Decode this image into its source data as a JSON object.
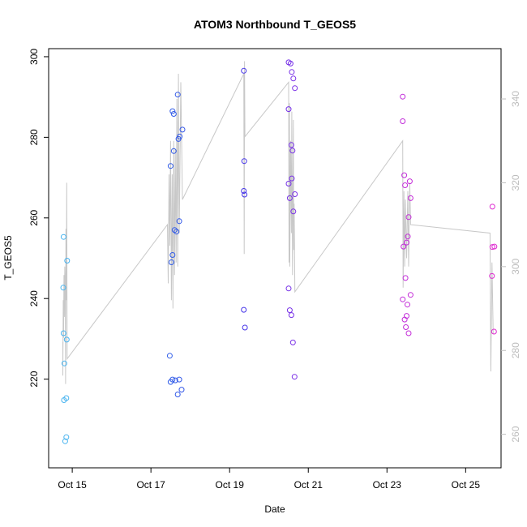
{
  "chart_data": {
    "type": "scatter",
    "title": "ATOM3 Northbound T_GEOS5",
    "xlabel": "Date",
    "ylabel": "T_GEOS5",
    "x_ticks": [
      "Oct 15",
      "Oct 17",
      "Oct 19",
      "Oct 21",
      "Oct 23",
      "Oct 25"
    ],
    "x_tick_values": [
      14,
      16,
      18,
      20,
      22,
      24
    ],
    "xlim": [
      13.4,
      24.9
    ],
    "ylim": [
      198,
      302
    ],
    "y_ticks": [
      220,
      240,
      260,
      280,
      300
    ],
    "y2lim": [
      252,
      352
    ],
    "y2_ticks": [
      260,
      280,
      300,
      320,
      340
    ],
    "grid": false,
    "legend": "none",
    "colors": {
      "line": "#c8c8c8",
      "point_gradient": [
        "#4ab8f0",
        "#2e6ce8",
        "#3a34e8",
        "#9a2ee6",
        "#c42cd8",
        "#e02ad0"
      ],
      "right_axis": "#bdbdbd"
    },
    "points": [
      {
        "x": 13.78,
        "y": 255.3
      },
      {
        "x": 13.77,
        "y": 242.7
      },
      {
        "x": 13.78,
        "y": 231.4
      },
      {
        "x": 13.8,
        "y": 223.9
      },
      {
        "x": 13.79,
        "y": 214.8
      },
      {
        "x": 13.85,
        "y": 215.3
      },
      {
        "x": 13.82,
        "y": 204.6
      },
      {
        "x": 13.85,
        "y": 205.6
      },
      {
        "x": 13.87,
        "y": 249.4
      },
      {
        "x": 13.86,
        "y": 229.8
      },
      {
        "x": 16.48,
        "y": 225.8
      },
      {
        "x": 16.5,
        "y": 219.3
      },
      {
        "x": 16.55,
        "y": 219.9
      },
      {
        "x": 16.62,
        "y": 219.7
      },
      {
        "x": 16.68,
        "y": 216.2
      },
      {
        "x": 16.72,
        "y": 219.9
      },
      {
        "x": 16.78,
        "y": 217.4
      },
      {
        "x": 16.5,
        "y": 272.9
      },
      {
        "x": 16.55,
        "y": 286.5
      },
      {
        "x": 16.58,
        "y": 285.8
      },
      {
        "x": 16.58,
        "y": 276.6
      },
      {
        "x": 16.68,
        "y": 290.6
      },
      {
        "x": 16.7,
        "y": 279.6
      },
      {
        "x": 16.73,
        "y": 280.2
      },
      {
        "x": 16.8,
        "y": 281.9
      },
      {
        "x": 16.52,
        "y": 249.0
      },
      {
        "x": 16.55,
        "y": 250.8
      },
      {
        "x": 16.6,
        "y": 257.0
      },
      {
        "x": 16.65,
        "y": 256.6
      },
      {
        "x": 16.72,
        "y": 259.2
      },
      {
        "x": 18.36,
        "y": 296.5
      },
      {
        "x": 18.37,
        "y": 274.1
      },
      {
        "x": 18.36,
        "y": 266.7
      },
      {
        "x": 18.38,
        "y": 265.8
      },
      {
        "x": 18.36,
        "y": 237.2
      },
      {
        "x": 18.39,
        "y": 232.8
      },
      {
        "x": 19.5,
        "y": 298.6
      },
      {
        "x": 19.55,
        "y": 298.3
      },
      {
        "x": 19.58,
        "y": 296.2
      },
      {
        "x": 19.62,
        "y": 294.6
      },
      {
        "x": 19.66,
        "y": 292.2
      },
      {
        "x": 19.5,
        "y": 287.0
      },
      {
        "x": 19.57,
        "y": 278.1
      },
      {
        "x": 19.6,
        "y": 276.7
      },
      {
        "x": 19.58,
        "y": 269.8
      },
      {
        "x": 19.5,
        "y": 268.5
      },
      {
        "x": 19.53,
        "y": 264.9
      },
      {
        "x": 19.66,
        "y": 265.9
      },
      {
        "x": 19.62,
        "y": 261.6
      },
      {
        "x": 19.5,
        "y": 242.5
      },
      {
        "x": 19.53,
        "y": 237.1
      },
      {
        "x": 19.57,
        "y": 235.9
      },
      {
        "x": 19.61,
        "y": 229.1
      },
      {
        "x": 19.65,
        "y": 220.6
      },
      {
        "x": 22.4,
        "y": 290.1
      },
      {
        "x": 22.4,
        "y": 284.0
      },
      {
        "x": 22.44,
        "y": 270.6
      },
      {
        "x": 22.46,
        "y": 268.1
      },
      {
        "x": 22.58,
        "y": 269.1
      },
      {
        "x": 22.6,
        "y": 264.9
      },
      {
        "x": 22.55,
        "y": 260.2
      },
      {
        "x": 22.53,
        "y": 255.4
      },
      {
        "x": 22.5,
        "y": 253.9
      },
      {
        "x": 22.42,
        "y": 252.9
      },
      {
        "x": 22.47,
        "y": 245.1
      },
      {
        "x": 22.52,
        "y": 238.5
      },
      {
        "x": 22.6,
        "y": 240.9
      },
      {
        "x": 22.4,
        "y": 239.8
      },
      {
        "x": 22.45,
        "y": 234.8
      },
      {
        "x": 22.5,
        "y": 235.7
      },
      {
        "x": 22.48,
        "y": 232.9
      },
      {
        "x": 22.55,
        "y": 231.4
      },
      {
        "x": 24.68,
        "y": 262.8
      },
      {
        "x": 24.68,
        "y": 252.8
      },
      {
        "x": 24.73,
        "y": 252.9
      },
      {
        "x": 24.67,
        "y": 245.6
      },
      {
        "x": 24.72,
        "y": 231.8
      }
    ],
    "line_y2": [
      [
        13.76,
        282
      ],
      [
        13.76,
        274
      ],
      [
        13.77,
        292
      ],
      [
        13.78,
        283
      ],
      [
        13.79,
        298
      ],
      [
        13.8,
        288
      ],
      [
        13.81,
        300
      ],
      [
        13.82,
        296
      ],
      [
        13.83,
        272
      ],
      [
        13.84,
        309
      ],
      [
        13.85,
        292
      ],
      [
        13.86,
        320
      ],
      [
        13.87,
        278
      ],
      [
        16.42,
        310
      ],
      [
        16.44,
        296
      ],
      [
        16.46,
        322
      ],
      [
        16.48,
        305
      ],
      [
        16.5,
        330
      ],
      [
        16.52,
        292
      ],
      [
        16.54,
        322
      ],
      [
        16.56,
        290
      ],
      [
        16.58,
        330
      ],
      [
        16.6,
        298
      ],
      [
        16.62,
        328
      ],
      [
        16.64,
        301
      ],
      [
        16.66,
        340
      ],
      [
        16.68,
        300
      ],
      [
        16.7,
        346
      ],
      [
        16.72,
        308
      ],
      [
        16.76,
        344
      ],
      [
        16.8,
        316
      ],
      [
        18.36,
        346
      ],
      [
        18.37,
        303
      ],
      [
        18.38,
        349
      ],
      [
        18.39,
        331
      ],
      [
        19.5,
        344
      ],
      [
        19.51,
        301
      ],
      [
        19.52,
        339
      ],
      [
        19.53,
        300
      ],
      [
        19.55,
        330
      ],
      [
        19.57,
        308
      ],
      [
        19.58,
        337
      ],
      [
        19.6,
        298
      ],
      [
        19.62,
        335
      ],
      [
        19.63,
        304
      ],
      [
        19.64,
        315
      ],
      [
        19.66,
        294
      ],
      [
        22.4,
        330
      ],
      [
        22.41,
        295
      ],
      [
        22.43,
        318
      ],
      [
        22.45,
        300
      ],
      [
        22.47,
        316
      ],
      [
        22.5,
        302
      ],
      [
        22.53,
        318
      ],
      [
        22.55,
        300
      ],
      [
        22.58,
        320
      ],
      [
        22.6,
        310
      ],
      [
        24.62,
        308
      ],
      [
        24.64,
        275
      ],
      [
        24.67,
        301
      ],
      [
        24.7,
        284
      ]
    ]
  }
}
